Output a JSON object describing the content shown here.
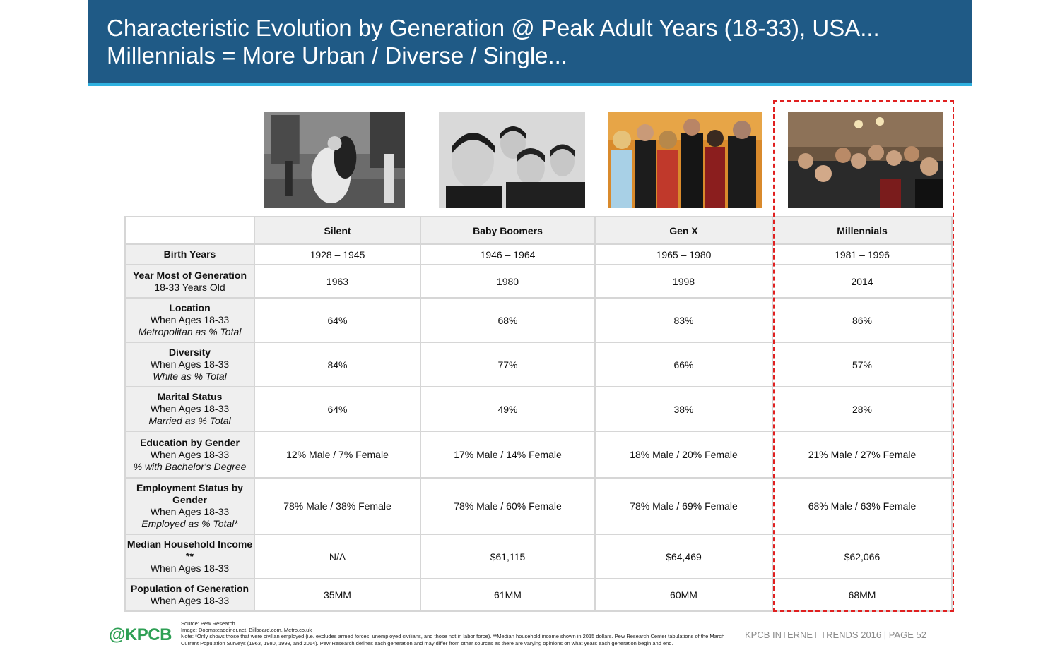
{
  "header": {
    "title_line1": "Characteristic Evolution by Generation @ Peak Adult Years (18-33), USA...",
    "title_line2": "Millennials = More Urban / Diverse / Single..."
  },
  "generations": [
    "Silent",
    "Baby Boomers",
    "Gen X",
    "Millennials"
  ],
  "photos": [
    {
      "generation": "Silent",
      "icon": "photo-silent-kiss"
    },
    {
      "generation": "Baby Boomers",
      "icon": "photo-band-portrait"
    },
    {
      "generation": "Gen X",
      "icon": "photo-sitcom-cast"
    },
    {
      "generation": "Millennials",
      "icon": "photo-group-selfie"
    }
  ],
  "rows": [
    {
      "label": "Birth Years",
      "sub": "",
      "ital": "",
      "values": [
        "1928 – 1945",
        "1946 – 1964",
        "1965 – 1980",
        "1981 – 1996"
      ]
    },
    {
      "label": "Year Most of Generation",
      "sub": "18-33 Years Old",
      "ital": "",
      "values": [
        "1963",
        "1980",
        "1998",
        "2014"
      ]
    },
    {
      "label": "Location",
      "sub": "When Ages 18-33",
      "ital": "Metropolitan as % Total",
      "values": [
        "64%",
        "68%",
        "83%",
        "86%"
      ]
    },
    {
      "label": "Diversity",
      "sub": "When Ages 18-33",
      "ital": "White as % Total",
      "values": [
        "84%",
        "77%",
        "66%",
        "57%"
      ]
    },
    {
      "label": "Marital Status",
      "sub": "When Ages 18-33",
      "ital": "Married as % Total",
      "values": [
        "64%",
        "49%",
        "38%",
        "28%"
      ]
    },
    {
      "label": "Education by Gender",
      "sub": "When Ages 18-33",
      "ital": "% with Bachelor's Degree",
      "values": [
        "12% Male / 7% Female",
        "17% Male / 14% Female",
        "18% Male / 20% Female",
        "21% Male / 27% Female"
      ]
    },
    {
      "label": "Employment Status by Gender",
      "sub": "When Ages 18-33",
      "ital": "Employed as % Total*",
      "values": [
        "78% Male / 38% Female",
        "78% Male / 60% Female",
        "78% Male / 69% Female",
        "68% Male / 63% Female"
      ]
    },
    {
      "label": "Median Household Income **",
      "sub": "When Ages 18-33",
      "ital": "",
      "values": [
        "N/A",
        "$61,115",
        "$64,469",
        "$62,066"
      ]
    },
    {
      "label": "Population of Generation",
      "sub": "When Ages 18-33",
      "ital": "",
      "values": [
        "35MM",
        "61MM",
        "60MM",
        "68MM"
      ]
    }
  ],
  "notes": {
    "source": "Source: Pew Research",
    "image": "Image: Doomsteaddiner.net, Billboard.com, Metro.co.uk",
    "note": "Note: *Only shows those that were civilian employed (i.e. excludes armed forces, unemployed civilians, and those not in labor force). **Median household income shown in 2015 dollars. Pew Research Center tabulations of the March Current Population Surveys (1963, 1980, 1998, and 2014). Pew Research defines each generation and may differ from other sources as there are varying opinions on what years each generation begin and end."
  },
  "logo": "@KPCB",
  "footer": "KPCB INTERNET TRENDS 2016   |   PAGE 52",
  "colors": {
    "header_bg": "#1f5a86",
    "header_accent": "#2fb1e0",
    "highlight": "#e02020",
    "logo": "#2e9f54"
  }
}
